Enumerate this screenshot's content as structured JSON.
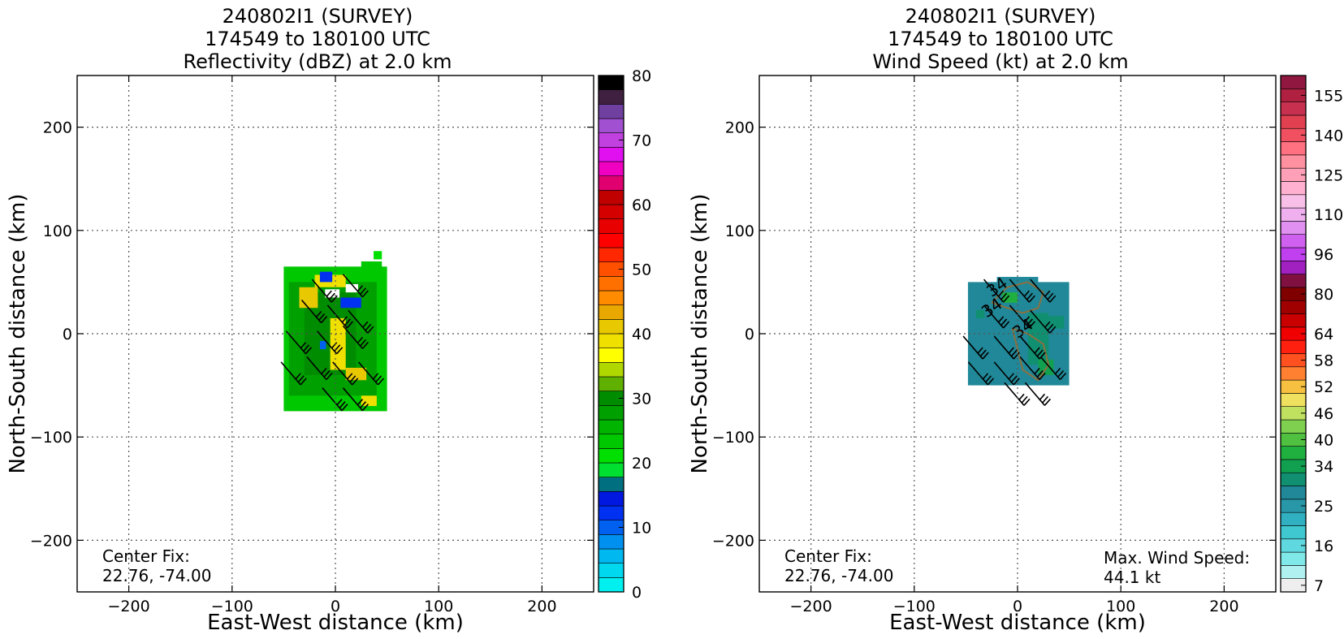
{
  "chart_data": [
    {
      "type": "heatmap",
      "title_lines": [
        "240802I1 (SURVEY)",
        "174549 to 180100 UTC",
        "Reflectivity (dBZ) at 2.0 km"
      ],
      "xlabel": "East-West distance (km)",
      "ylabel": "North-South distance (km)",
      "xlim": [
        -250,
        250
      ],
      "ylim": [
        -250,
        250
      ],
      "xticks": [
        -200,
        -100,
        0,
        100,
        200
      ],
      "yticks": [
        -200,
        -100,
        0,
        100,
        200
      ],
      "xtick_labels": [
        "−200",
        "−100",
        "0",
        "100",
        "200"
      ],
      "ytick_labels": [
        "−200",
        "−100",
        "0",
        "100",
        "200"
      ],
      "grid": true,
      "annotations": [
        {
          "name": "center-fix-label",
          "text": "Center Fix:"
        },
        {
          "name": "center-fix-value",
          "text": "22.76, -74.00"
        }
      ],
      "colorbar": {
        "min": 0,
        "max": 80,
        "step": 2.5,
        "tick_values": [
          0,
          10,
          20,
          30,
          40,
          50,
          60,
          70,
          80
        ],
        "tick_labels": [
          "0",
          "10",
          "20",
          "30",
          "40",
          "50",
          "60",
          "70",
          "80"
        ],
        "colors": [
          "#00f0f0",
          "#00d8f0",
          "#00b8f0",
          "#0090f0",
          "#0060f0",
          "#0030f0",
          "#0018e0",
          "#007080",
          "#00e030",
          "#00e000",
          "#00c800",
          "#00b400",
          "#00a000",
          "#008c00",
          "#60b000",
          "#b0d800",
          "#ffff00",
          "#f0e000",
          "#e8c800",
          "#e8a800",
          "#ff8c00",
          "#ff7000",
          "#ff5000",
          "#ff2800",
          "#ff0000",
          "#e80000",
          "#d40000",
          "#c00000",
          "#e00070",
          "#f000c0",
          "#e010f0",
          "#c040e0",
          "#a050d0",
          "#7040a0",
          "#402040",
          "#000000"
        ]
      },
      "echo_blocks": [
        {
          "x": -50,
          "y": -75,
          "w": 100,
          "h": 140,
          "color": "#00c800"
        },
        {
          "x": -45,
          "y": -60,
          "w": 85,
          "h": 110,
          "color": "#00a000"
        },
        {
          "x": -30,
          "y": -40,
          "w": 50,
          "h": 80,
          "color": "#008c00"
        },
        {
          "x": 25,
          "y": 60,
          "w": 20,
          "h": 10,
          "color": "#00c800"
        },
        {
          "x": 37,
          "y": 72,
          "w": 8,
          "h": 8,
          "color": "#00e000"
        },
        {
          "x": -20,
          "y": 45,
          "w": 30,
          "h": 12,
          "color": "#f0e000"
        },
        {
          "x": -35,
          "y": 25,
          "w": 18,
          "h": 20,
          "color": "#e8c800"
        },
        {
          "x": -5,
          "y": -35,
          "w": 15,
          "h": 50,
          "color": "#f0e000"
        },
        {
          "x": 10,
          "y": -45,
          "w": 20,
          "h": 12,
          "color": "#e8c800"
        },
        {
          "x": 25,
          "y": -70,
          "w": 15,
          "h": 10,
          "color": "#f0e000"
        },
        {
          "x": -15,
          "y": 50,
          "w": 12,
          "h": 10,
          "color": "#0030f0"
        },
        {
          "x": 5,
          "y": 25,
          "w": 20,
          "h": 10,
          "color": "#0030f0"
        },
        {
          "x": 10,
          "y": 40,
          "w": 12,
          "h": 8,
          "color": "#ffffff"
        },
        {
          "x": -15,
          "y": -15,
          "w": 6,
          "h": 8,
          "color": "#0060f0"
        },
        {
          "x": -10,
          "y": 35,
          "w": 14,
          "h": 8,
          "color": "#ffffff"
        }
      ]
    },
    {
      "type": "heatmap",
      "title_lines": [
        "240802I1 (SURVEY)",
        "174549 to 180100 UTC",
        "Wind Speed (kt) at 2.0 km"
      ],
      "xlabel": "East-West distance (km)",
      "ylabel": "North-South distance (km)",
      "xlim": [
        -250,
        250
      ],
      "ylim": [
        -250,
        250
      ],
      "xticks": [
        -200,
        -100,
        0,
        100,
        200
      ],
      "yticks": [
        -200,
        -100,
        0,
        100,
        200
      ],
      "xtick_labels": [
        "−200",
        "−100",
        "0",
        "100",
        "200"
      ],
      "ytick_labels": [
        "−200",
        "−100",
        "0",
        "100",
        "200"
      ],
      "grid": true,
      "annotations": [
        {
          "name": "center-fix-label",
          "text": "Center Fix:"
        },
        {
          "name": "center-fix-value",
          "text": "22.76, -74.00"
        },
        {
          "name": "max-wind-label",
          "text": "Max. Wind Speed:"
        },
        {
          "name": "max-wind-value",
          "text": "44.1 kt"
        }
      ],
      "contour_labels": [
        "34",
        "34",
        "34"
      ],
      "colorbar": {
        "tick_labels": [
          "7",
          "16",
          "25",
          "34",
          "40",
          "46",
          "52",
          "58",
          "64",
          "80",
          "96",
          "110",
          "125",
          "140",
          "155"
        ],
        "tick_bin_index": [
          0,
          3,
          6,
          9,
          11,
          13,
          15,
          17,
          19,
          22,
          25,
          28,
          31,
          34,
          37
        ],
        "colors": [
          "#eeeeee",
          "#b0f0f0",
          "#80e8e8",
          "#60d8e0",
          "#40c8d0",
          "#30b0c0",
          "#2898a8",
          "#208898",
          "#109070",
          "#10a050",
          "#20b040",
          "#50c040",
          "#80d050",
          "#c0e060",
          "#f0e060",
          "#f8c040",
          "#ff8030",
          "#ff5020",
          "#ff2010",
          "#f00000",
          "#c80000",
          "#a00000",
          "#800000",
          "#801040",
          "#a020c0",
          "#c040f0",
          "#d060f0",
          "#e090f0",
          "#f0b0f0",
          "#f8c0e8",
          "#ffb0d0",
          "#ffa0b8",
          "#ff90a0",
          "#ff7080",
          "#f05060",
          "#e04050",
          "#c83050",
          "#b02040",
          "#901840"
        ]
      },
      "wind_blocks": [
        {
          "x": -48,
          "y": -50,
          "w": 98,
          "h": 100,
          "color": "#208898"
        },
        {
          "x": -20,
          "y": 40,
          "w": 40,
          "h": 15,
          "color": "#208898"
        },
        {
          "x": 10,
          "y": -30,
          "w": 20,
          "h": 50,
          "color": "#109070"
        },
        {
          "x": -15,
          "y": 30,
          "w": 15,
          "h": 10,
          "color": "#20b040"
        },
        {
          "x": 20,
          "y": -40,
          "w": 15,
          "h": 15,
          "color": "#10a050"
        },
        {
          "x": -40,
          "y": 15,
          "w": 8,
          "h": 8,
          "color": "#109070"
        },
        {
          "x": 30,
          "y": 5,
          "w": 15,
          "h": 12,
          "color": "#109070"
        }
      ]
    }
  ]
}
